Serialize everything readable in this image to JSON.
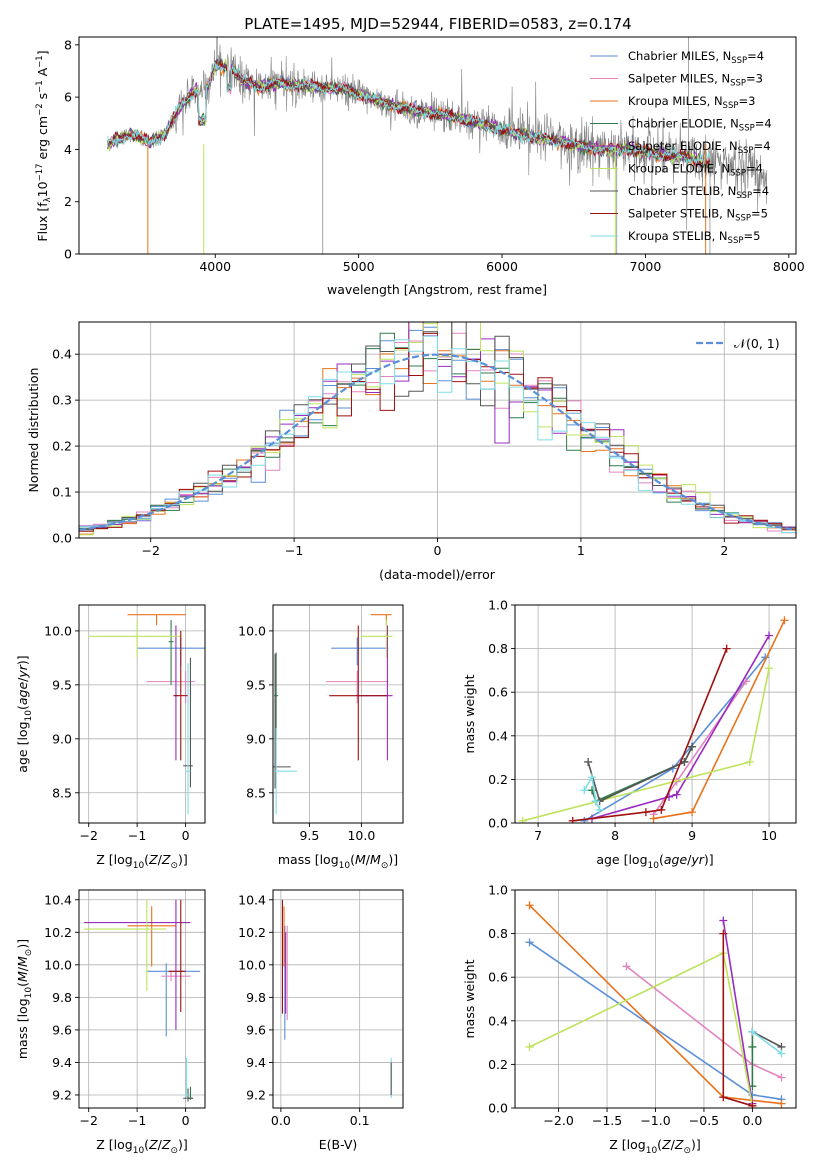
{
  "figure_title": "PLATE=1495, MJD=52944, FIBERID=0583, z=0.174",
  "palette": {
    "Chabrier MILES": "#5b8fd8",
    "Salpeter MILES": "#e384c0",
    "Kroupa MILES": "#e8731c",
    "Chabrier ELODIE": "#2f7c4a",
    "Salpeter ELODIE": "#9a2bbf",
    "Kroupa ELODIE": "#bde35c",
    "Chabrier STELIB": "#555555",
    "Salpeter STELIB": "#a01010",
    "Kroupa STELIB": "#7fdde6",
    "data": "#808080",
    "grid": "#b0b0b0"
  },
  "chart_data": [
    {
      "id": "spectrum",
      "type": "line",
      "title": "PLATE=1495, MJD=52944, FIBERID=0583, z=0.174",
      "xlabel": "wavelength [Angstrom, rest frame]",
      "ylabel_parts": [
        "Flux [f",
        "λ",
        "10",
        "−17",
        " erg cm",
        "−2",
        " s",
        "−1",
        " A",
        "−1",
        "]"
      ],
      "xlim": [
        3050,
        8050
      ],
      "ylim": [
        0,
        8.3
      ],
      "xticks": [
        4000,
        5000,
        6000,
        7000,
        8000
      ],
      "yticks": [
        0,
        2,
        4,
        6,
        8
      ],
      "grid": false,
      "legend_placement": "right",
      "legend": [
        {
          "label": "Chabrier MILES, N",
          "sub": "SSP",
          "value": "=4"
        },
        {
          "label": "Salpeter MILES, N",
          "sub": "SSP",
          "value": "=3"
        },
        {
          "label": "Kroupa MILES, N",
          "sub": "SSP",
          "value": "=3"
        },
        {
          "label": "Chabrier ELODIE, N",
          "sub": "SSP",
          "value": "=4"
        },
        {
          "label": "Salpeter ELODIE, N",
          "sub": "SSP",
          "value": "=4"
        },
        {
          "label": "Kroupa ELODIE, N",
          "sub": "SSP",
          "value": "=4"
        },
        {
          "label": "Chabrier STELIB, N",
          "sub": "SSP",
          "value": "=4"
        },
        {
          "label": "Salpeter STELIB, N",
          "sub": "SSP",
          "value": "=5"
        },
        {
          "label": "Kroupa STELIB, N",
          "sub": "SSP",
          "value": "=5"
        }
      ],
      "continuum": {
        "x": [
          3250,
          3400,
          3550,
          3650,
          3750,
          3850,
          3950,
          4000,
          4100,
          4200,
          4300,
          4400,
          4500,
          4700,
          4900,
          5100,
          5300,
          5500,
          5700,
          5900,
          6100,
          6300,
          6500,
          6700,
          6900,
          7100,
          7300,
          7500,
          7700,
          7850
        ],
        "y": [
          4.2,
          4.6,
          4.3,
          4.6,
          5.6,
          6.2,
          6.4,
          7.2,
          7.2,
          6.6,
          6.4,
          6.5,
          6.5,
          6.4,
          6.3,
          5.9,
          5.6,
          5.4,
          5.2,
          4.9,
          4.6,
          4.4,
          4.2,
          4.0,
          4.0,
          3.8,
          3.7,
          3.4,
          3.2,
          3.0
        ]
      },
      "data_range": [
        3250,
        7850
      ],
      "model_range": [
        3250,
        7450
      ]
    },
    {
      "id": "residuals",
      "type": "histogram",
      "xlabel": "(data-model)/error",
      "ylabel": "Normed distribution",
      "xlim": [
        -2.5,
        2.5
      ],
      "ylim": [
        0,
        0.47
      ],
      "xticks": [
        -2,
        -1,
        0,
        1,
        2
      ],
      "yticks": [
        0.0,
        0.1,
        0.2,
        0.3,
        0.4
      ],
      "grid": true,
      "legend_placement": "top-right",
      "reference_curve": {
        "label": "𝒩(0, 1)",
        "mean": 0,
        "sigma": 1
      },
      "bin_width": 0.1
    },
    {
      "id": "z-age",
      "type": "errorbar",
      "xlabel": "Z [log10(Z/Z⊙)]",
      "ylabel": "age  [log10(age/yr)]",
      "xlim": [
        -2.2,
        0.4
      ],
      "ylim": [
        8.22,
        10.24
      ],
      "xticks": [
        -2,
        -1,
        0
      ],
      "yticks": [
        8.5,
        9.0,
        9.5,
        10.0
      ],
      "grid": true,
      "points": [
        {
          "series": "Chabrier MILES",
          "x": -0.1,
          "xerr": [
            0.9,
            0.5
          ],
          "y": 9.84,
          "yerr": [
            0.16,
            0.1
          ]
        },
        {
          "series": "Salpeter MILES",
          "x": 0.0,
          "xerr": [
            0.8,
            0.2
          ],
          "y": 9.53,
          "yerr": [
            0.2,
            0.1
          ]
        },
        {
          "series": "Kroupa MILES",
          "x": -0.6,
          "xerr": [
            0.6,
            0.6
          ],
          "y": 10.15,
          "yerr": [
            0.1,
            0.0
          ]
        },
        {
          "series": "Chabrier ELODIE",
          "x": -0.3,
          "xerr": [
            0.05,
            0.05
          ],
          "y": 9.9,
          "yerr": [
            0.4,
            0.2
          ]
        },
        {
          "series": "Salpeter ELODIE",
          "x": -0.2,
          "xerr": [
            0.05,
            0.05
          ],
          "y": 9.4,
          "yerr": [
            0.6,
            0.65
          ]
        },
        {
          "series": "Kroupa ELODIE",
          "x": -1.0,
          "xerr": [
            1.0,
            0.9
          ],
          "y": 9.95,
          "yerr": [
            0.2,
            0.15
          ]
        },
        {
          "series": "Chabrier STELIB",
          "x": 0.1,
          "xerr": [
            0.15,
            0.05
          ],
          "y": 8.75,
          "yerr": [
            0.2,
            1.0
          ]
        },
        {
          "series": "Salpeter STELIB",
          "x": -0.1,
          "xerr": [
            0.15,
            0.15
          ],
          "y": 9.4,
          "yerr": [
            0.6,
            0.6
          ]
        },
        {
          "series": "Kroupa STELIB",
          "x": 0.05,
          "xerr": [
            0.05,
            0.05
          ],
          "y": 8.7,
          "yerr": [
            0.4,
            1.0
          ]
        }
      ]
    },
    {
      "id": "mass-age",
      "type": "errorbar",
      "xlabel": "mass [log10(M/M⊙)]",
      "ylabel": "",
      "xlim": [
        9.15,
        10.4
      ],
      "ylim": [
        8.22,
        10.24
      ],
      "xticks": [
        9.5,
        10.0
      ],
      "yticks": [
        8.5,
        9.0,
        9.5,
        10.0
      ],
      "grid": true,
      "points": [
        {
          "series": "Chabrier MILES",
          "x": 9.96,
          "xerr": [
            0.25,
            0.3
          ],
          "y": 9.84,
          "yerr": [
            0.16,
            0.1
          ]
        },
        {
          "series": "Salpeter MILES",
          "x": 9.96,
          "xerr": [
            0.3,
            0.3
          ],
          "y": 9.53,
          "yerr": [
            0.2,
            0.1
          ]
        },
        {
          "series": "Kroupa MILES",
          "x": 10.24,
          "xerr": [
            0.15,
            0.05
          ],
          "y": 10.15,
          "yerr": [
            0.1,
            0.0
          ]
        },
        {
          "series": "Chabrier ELODIE",
          "x": 9.18,
          "xerr": [
            0.02,
            0.02
          ],
          "y": 9.4,
          "yerr": [
            0.4,
            0.4
          ]
        },
        {
          "series": "Salpeter ELODIE",
          "x": 10.25,
          "xerr": [
            0.3,
            0.05
          ],
          "y": 9.4,
          "yerr": [
            0.6,
            0.65
          ]
        },
        {
          "series": "Kroupa ELODIE",
          "x": 10.24,
          "xerr": [
            0.25,
            0.06
          ],
          "y": 9.95,
          "yerr": [
            0.2,
            0.15
          ]
        },
        {
          "series": "Chabrier STELIB",
          "x": 9.17,
          "xerr": [
            0.02,
            0.15
          ],
          "y": 8.74,
          "yerr": [
            0.2,
            1.05
          ]
        },
        {
          "series": "Salpeter STELIB",
          "x": 9.97,
          "xerr": [
            0.28,
            0.28
          ],
          "y": 9.4,
          "yerr": [
            0.6,
            0.65
          ]
        },
        {
          "series": "Kroupa STELIB",
          "x": 9.18,
          "xerr": [
            0.01,
            0.2
          ],
          "y": 8.7,
          "yerr": [
            0.4,
            0.4
          ]
        }
      ]
    },
    {
      "id": "age-weight",
      "type": "line",
      "xlabel": "age  [log10(age/yr)]",
      "ylabel": "mass weight",
      "xlim": [
        6.7,
        10.35
      ],
      "ylim": [
        0,
        1.0
      ],
      "xticks": [
        7,
        8,
        9,
        10
      ],
      "yticks": [
        0.0,
        0.2,
        0.4,
        0.6,
        0.8,
        1.0
      ],
      "grid": true,
      "series": [
        {
          "name": "Chabrier MILES",
          "x": [
            7.6,
            8.75,
            9.95
          ],
          "y": [
            0.01,
            0.25,
            0.76
          ]
        },
        {
          "name": "Salpeter MILES",
          "x": [
            8.5,
            8.8,
            9.7
          ],
          "y": [
            0.04,
            0.19,
            0.65
          ]
        },
        {
          "name": "Kroupa MILES",
          "x": [
            8.5,
            9.0,
            10.2
          ],
          "y": [
            0.02,
            0.05,
            0.93
          ]
        },
        {
          "name": "Chabrier ELODIE",
          "x": [
            7.7,
            7.75,
            8.9,
            9.0
          ],
          "y": [
            0.15,
            0.1,
            0.28,
            0.35
          ]
        },
        {
          "name": "Salpeter ELODIE",
          "x": [
            7.7,
            8.7,
            8.8,
            10.0
          ],
          "y": [
            0.02,
            0.12,
            0.13,
            0.86
          ]
        },
        {
          "name": "Kroupa ELODIE",
          "x": [
            6.8,
            9.75,
            10.0
          ],
          "y": [
            0.01,
            0.28,
            0.71
          ]
        },
        {
          "name": "Chabrier STELIB",
          "x": [
            7.65,
            7.8,
            8.9,
            9.0
          ],
          "y": [
            0.28,
            0.1,
            0.28,
            0.35
          ]
        },
        {
          "name": "Salpeter STELIB",
          "x": [
            7.45,
            8.4,
            8.6,
            9.45
          ],
          "y": [
            0.01,
            0.05,
            0.06,
            0.8
          ]
        },
        {
          "name": "Kroupa STELIB",
          "x": [
            7.6,
            7.7,
            7.75,
            7.8
          ],
          "y": [
            0.15,
            0.21,
            0.1,
            0.06
          ]
        }
      ]
    },
    {
      "id": "z-mass",
      "type": "errorbar",
      "xlabel": "Z [log10(Z/Z⊙)]",
      "ylabel": "mass [log10(M/M⊙)]",
      "xlim": [
        -2.2,
        0.4
      ],
      "ylim": [
        9.12,
        10.46
      ],
      "xticks": [
        -2,
        -1,
        0
      ],
      "yticks": [
        9.2,
        9.4,
        9.6,
        9.8,
        10.0,
        10.2,
        10.4
      ],
      "grid": true,
      "points": [
        {
          "series": "Chabrier MILES",
          "x": -0.4,
          "xerr": [
            0.4,
            0.7
          ],
          "y": 9.96,
          "yerr": [
            0.4,
            0.05
          ]
        },
        {
          "series": "Salpeter MILES",
          "x": -0.3,
          "xerr": [
            0.2,
            0.4
          ],
          "y": 9.93,
          "yerr": [
            0.03,
            0.03
          ]
        },
        {
          "series": "Kroupa MILES",
          "x": -0.7,
          "xerr": [
            0.5,
            0.5
          ],
          "y": 10.24,
          "yerr": [
            0.25,
            0.12
          ]
        },
        {
          "series": "Chabrier ELODIE",
          "x": 0.1,
          "xerr": [
            0.05,
            0.05
          ],
          "y": 9.18,
          "yerr": [
            0.01,
            0.07
          ]
        },
        {
          "series": "Salpeter ELODIE",
          "x": -0.2,
          "xerr": [
            1.9,
            0.3
          ],
          "y": 10.26,
          "yerr": [
            0.66,
            0.14
          ]
        },
        {
          "series": "Kroupa ELODIE",
          "x": -0.8,
          "xerr": [
            1.3,
            0.4
          ],
          "y": 10.22,
          "yerr": [
            0.38,
            0.18
          ]
        },
        {
          "series": "Chabrier STELIB",
          "x": 0.05,
          "xerr": [
            0.1,
            0.1
          ],
          "y": 9.18,
          "yerr": [
            0.02,
            0.06
          ]
        },
        {
          "series": "Salpeter STELIB",
          "x": -0.1,
          "xerr": [
            0.25,
            0.1
          ],
          "y": 9.96,
          "yerr": [
            0.25,
            0.44
          ]
        },
        {
          "series": "Kroupa STELIB",
          "x": 0.02,
          "xerr": [
            0.04,
            0.04
          ],
          "y": 9.2,
          "yerr": [
            0.02,
            0.23
          ]
        }
      ]
    },
    {
      "id": "ebv-mass",
      "type": "errorbar",
      "xlabel": "E(B-V)",
      "ylabel": "",
      "xlim": [
        -0.01,
        0.155
      ],
      "ylim": [
        9.12,
        10.46
      ],
      "xticks": [
        0.0,
        0.1
      ],
      "yticks": [
        9.2,
        9.4,
        9.6,
        9.8,
        10.0,
        10.2,
        10.4
      ],
      "grid": true,
      "points": [
        {
          "series": "Chabrier MILES",
          "x": 0.005,
          "xerr": [
            0,
            0
          ],
          "y": 9.96,
          "yerr": [
            0.42,
            0.28
          ]
        },
        {
          "series": "Salpeter MILES",
          "x": 0.008,
          "xerr": [
            0,
            0
          ],
          "y": 9.96,
          "yerr": [
            0.3,
            0.28
          ]
        },
        {
          "series": "Kroupa MILES",
          "x": 0.004,
          "xerr": [
            0,
            0
          ],
          "y": 10.24,
          "yerr": [
            0.25,
            0.12
          ]
        },
        {
          "series": "Salpeter ELODIE",
          "x": 0.006,
          "xerr": [
            0,
            0
          ],
          "y": 10.0,
          "yerr": [
            0.3,
            0.2
          ]
        },
        {
          "series": "Salpeter STELIB",
          "x": 0.002,
          "xerr": [
            0,
            0
          ],
          "y": 10.0,
          "yerr": [
            0.3,
            0.4
          ]
        },
        {
          "series": "Kroupa STELIB",
          "x": 0.14,
          "xerr": [
            0,
            0
          ],
          "y": 9.3,
          "yerr": [
            0.12,
            0.13
          ]
        },
        {
          "series": "Chabrier STELIB",
          "x": 0.14,
          "xerr": [
            0,
            0
          ],
          "y": 9.3,
          "yerr": [
            0.1,
            0.1
          ]
        }
      ]
    },
    {
      "id": "z-weight",
      "type": "line",
      "xlabel": "Z [log10(Z/Z⊙)]",
      "ylabel": "mass weight",
      "xlim": [
        -2.45,
        0.45
      ],
      "ylim": [
        0,
        1.0
      ],
      "xticks": [
        -2.0,
        -1.5,
        -1.0,
        -0.5,
        0.0
      ],
      "yticks": [
        0.0,
        0.2,
        0.4,
        0.6,
        0.8,
        1.0
      ],
      "grid": true,
      "series": [
        {
          "name": "Chabrier MILES",
          "x": [
            -2.3,
            0.0,
            0.3
          ],
          "y": [
            0.76,
            0.06,
            0.04
          ]
        },
        {
          "name": "Salpeter MILES",
          "x": [
            -1.3,
            0.0,
            0.3
          ],
          "y": [
            0.65,
            0.2,
            0.14
          ]
        },
        {
          "name": "Kroupa MILES",
          "x": [
            -2.3,
            -0.3,
            0.3
          ],
          "y": [
            0.93,
            0.05,
            0.02
          ]
        },
        {
          "name": "Chabrier ELODIE",
          "x": [
            0.0,
            0.0,
            0.0
          ],
          "y": [
            0.35,
            0.28,
            0.1
          ]
        },
        {
          "name": "Salpeter ELODIE",
          "x": [
            -0.3,
            0.0
          ],
          "y": [
            0.86,
            0.02
          ]
        },
        {
          "name": "Kroupa ELODIE",
          "x": [
            -2.3,
            -0.3,
            0.0
          ],
          "y": [
            0.28,
            0.71,
            0.01
          ]
        },
        {
          "name": "Chabrier STELIB",
          "x": [
            0.0,
            0.3
          ],
          "y": [
            0.35,
            0.28
          ]
        },
        {
          "name": "Salpeter STELIB",
          "x": [
            -0.3,
            -0.3,
            0.0
          ],
          "y": [
            0.8,
            0.05,
            0.01
          ]
        },
        {
          "name": "Kroupa STELIB",
          "x": [
            0.0,
            0.3
          ],
          "y": [
            0.35,
            0.25
          ]
        }
      ]
    }
  ]
}
